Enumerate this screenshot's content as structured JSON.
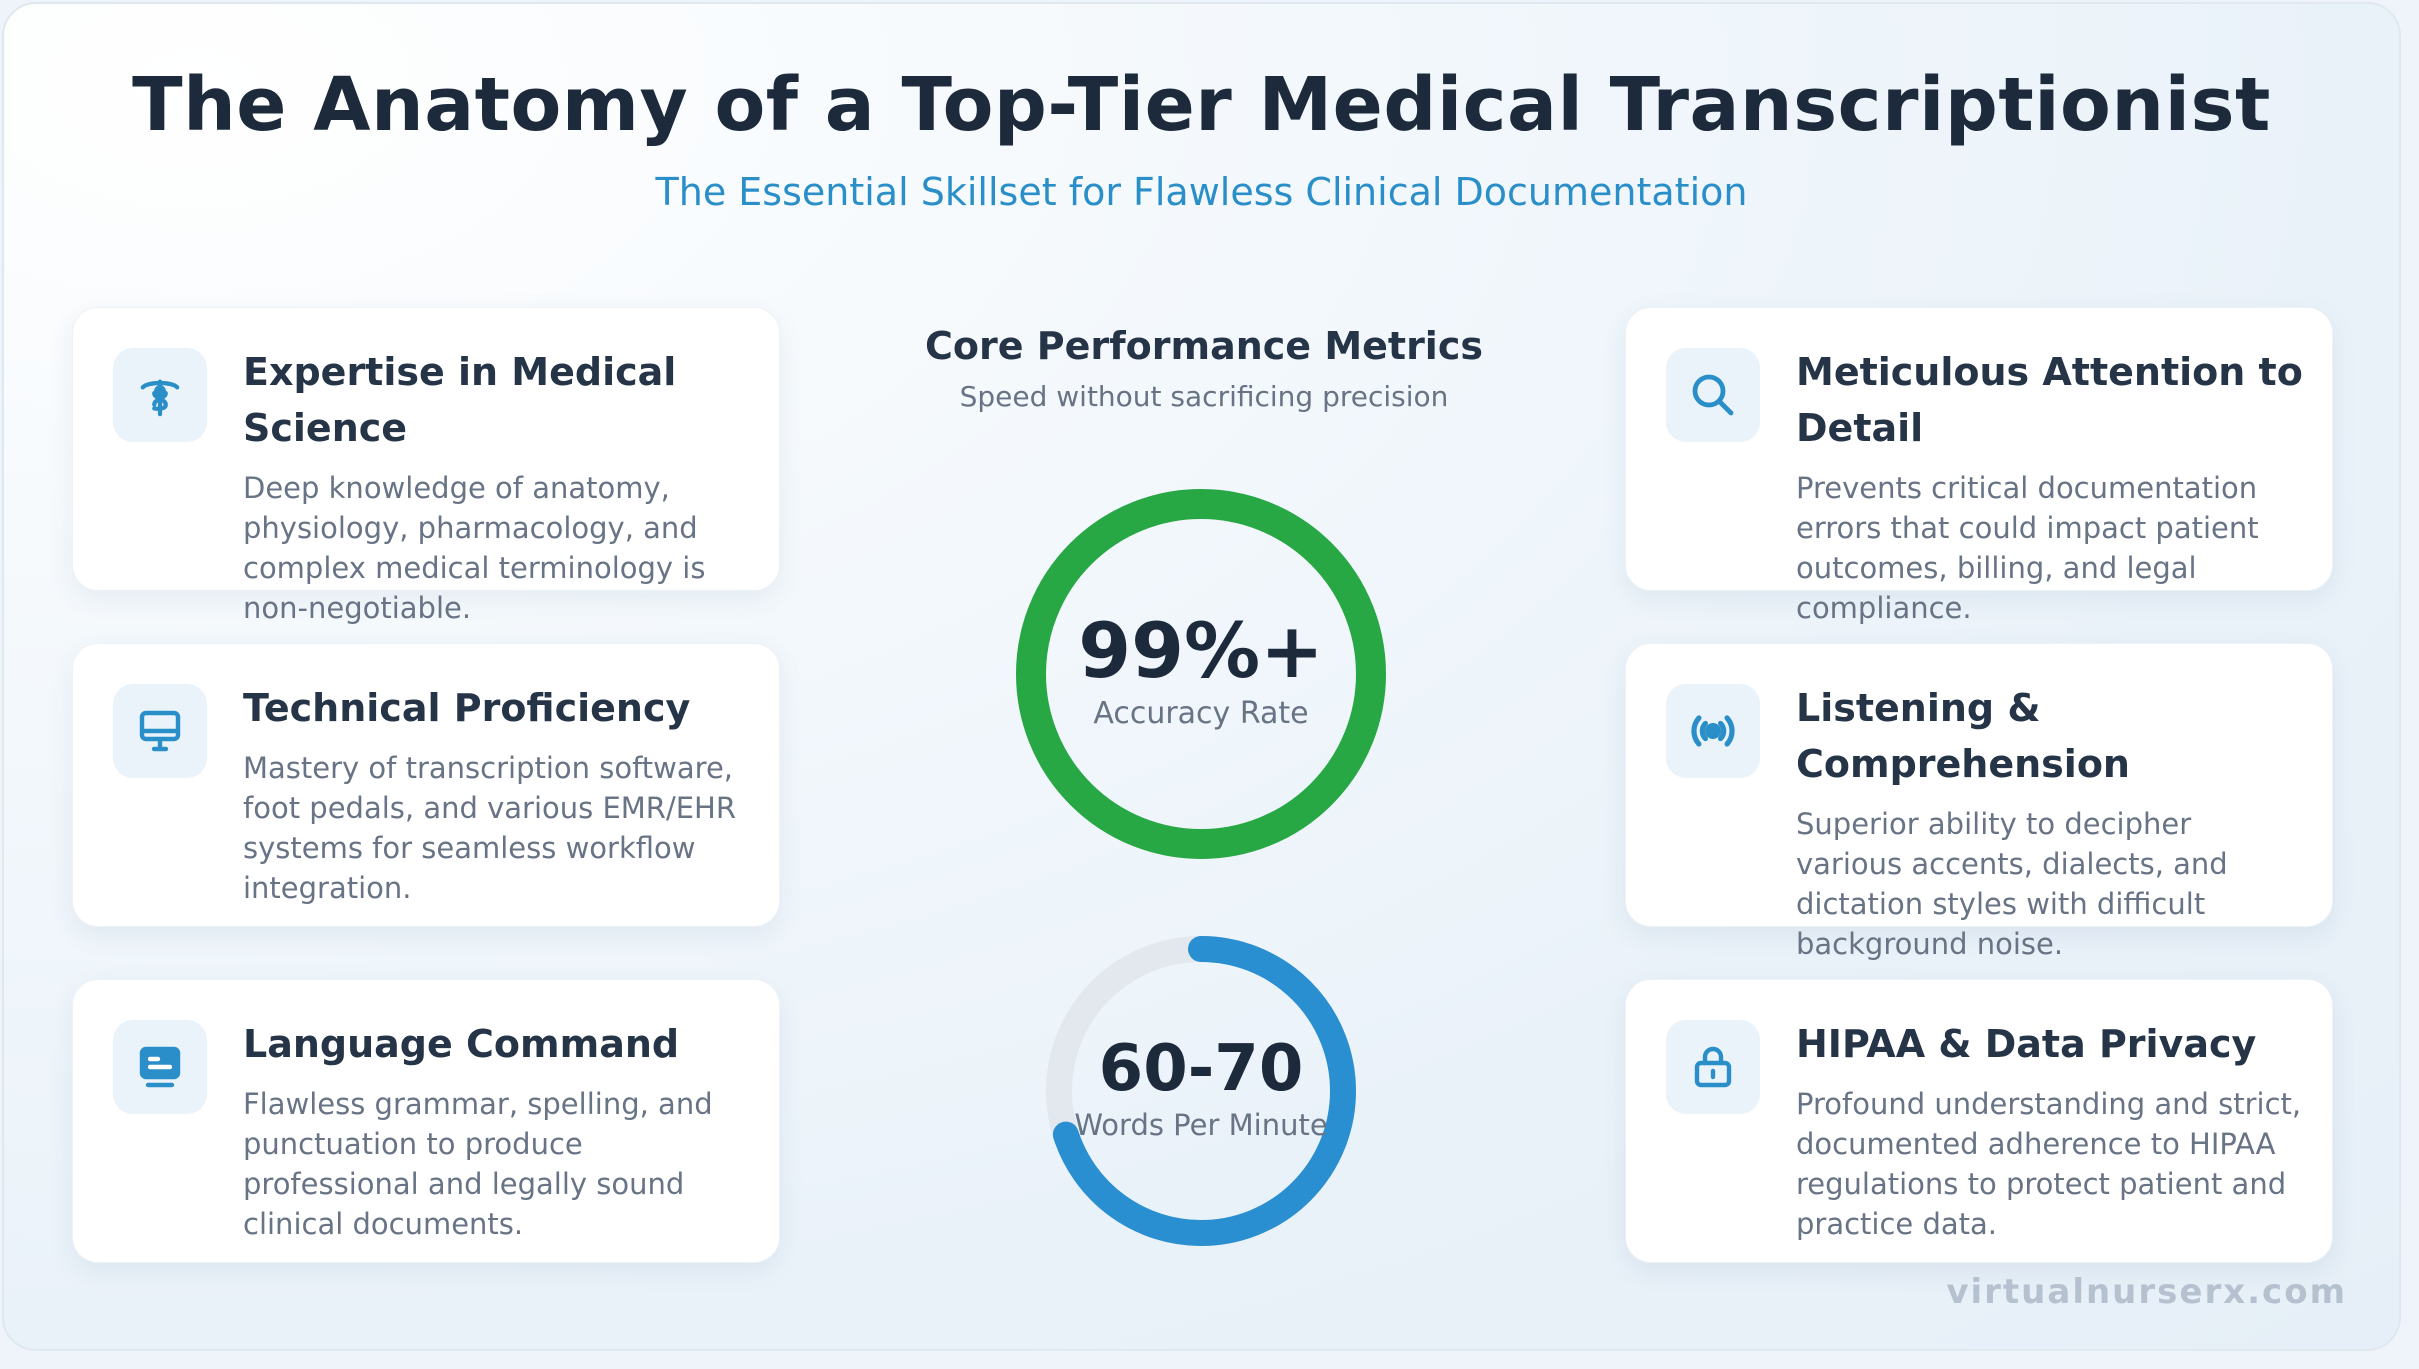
{
  "header": {
    "title": "The Anatomy of a Top-Tier Medical Transcriptionist",
    "subtitle": "The Essential Skillset for Flawless Clinical Documentation"
  },
  "cards": [
    {
      "title": "Expertise in Medical Science",
      "description": "Deep knowledge of anatomy, physiology, pharmacology, and complex medical terminology is non-negotiable.",
      "icon": "caduceus-icon"
    },
    {
      "title": "Technical Proficiency",
      "description": "Mastery of transcription software, foot pedals, and various EMR/EHR systems for seamless workflow integration.",
      "icon": "monitor-icon"
    },
    {
      "title": "Language Command",
      "description": "Flawless grammar, spelling, and punctuation to produce professional and legally sound clinical documents.",
      "icon": "document-screen-icon"
    },
    {
      "title": "Meticulous Attention to Detail",
      "description": "Prevents critical documentation errors that could impact patient outcomes, billing, and legal compliance.",
      "icon": "search-icon"
    },
    {
      "title": "Listening & Comprehension",
      "description": "Superior ability to decipher various accents, dialects, and dictation styles with difficult background noise.",
      "icon": "broadcast-icon"
    },
    {
      "title": "HIPAA & Data Privacy",
      "description": "Profound understanding and strict, documented adherence to HIPAA regulations to protect patient and practice data.",
      "icon": "lock-icon"
    }
  ],
  "metrics": {
    "title": "Core Performance Metrics",
    "subtitle": "Speed without sacrificing precision",
    "accuracy": {
      "value": "99%+",
      "label": "Accuracy Rate",
      "fill": 1.0,
      "color": "#27a844"
    },
    "speed": {
      "value": "60-70",
      "label": "Words Per Minute",
      "fill": 0.7,
      "color": "#2a8fd0"
    }
  },
  "colors": {
    "accent": "#2a8fc9",
    "track": "#e3e8ee"
  },
  "watermark": "virtualnurserx.com"
}
